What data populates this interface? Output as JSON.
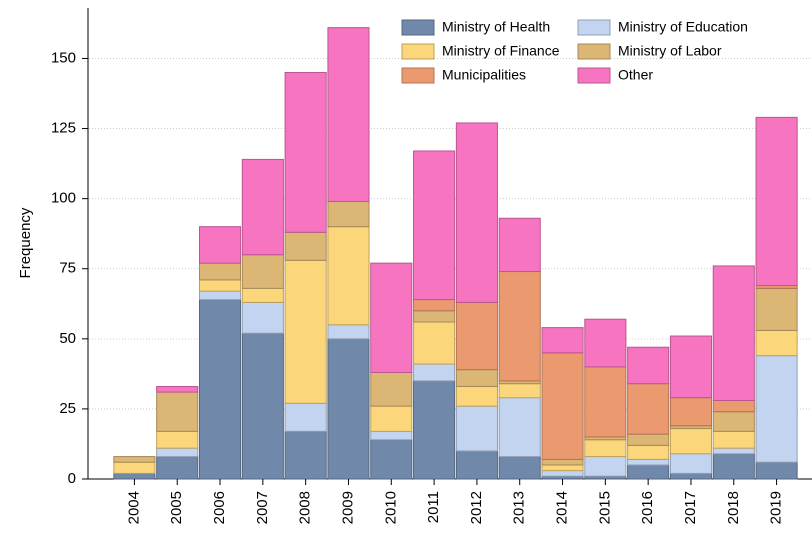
{
  "chart_data": {
    "type": "stacked_bar",
    "y_label": "Frequency",
    "categories": [
      "2004",
      "2005",
      "2006",
      "2007",
      "2008",
      "2009",
      "2010",
      "2011",
      "2012",
      "2013",
      "2014",
      "2015",
      "2016",
      "2017",
      "2018",
      "2019"
    ],
    "series": [
      {
        "name": "Ministry of Health",
        "color": "#7089ab",
        "values": [
          2,
          8,
          64,
          52,
          17,
          50,
          14,
          35,
          10,
          8,
          1,
          1,
          5,
          2,
          9,
          6
        ]
      },
      {
        "name": "Ministry of Education",
        "color": "#c3d4f0",
        "values": [
          0,
          3,
          3,
          11,
          10,
          5,
          3,
          6,
          16,
          21,
          2,
          7,
          2,
          7,
          2,
          38
        ]
      },
      {
        "name": "Ministry of Finance",
        "color": "#fcd67a",
        "values": [
          4,
          6,
          4,
          5,
          51,
          35,
          9,
          15,
          7,
          5,
          2,
          6,
          5,
          9,
          6,
          9
        ]
      },
      {
        "name": "Ministry of Labor",
        "color": "#dbb674",
        "values": [
          2,
          14,
          6,
          12,
          10,
          9,
          12,
          4,
          6,
          1,
          2,
          1,
          4,
          1,
          7,
          15
        ]
      },
      {
        "name": "Municipalities",
        "color": "#eb9a70",
        "values": [
          0,
          0,
          0,
          0,
          0,
          0,
          0,
          4,
          24,
          39,
          38,
          25,
          18,
          10,
          4,
          1
        ]
      },
      {
        "name": "Other",
        "color": "#f774c0",
        "values": [
          0,
          2,
          13,
          34,
          57,
          62,
          39,
          53,
          64,
          19,
          9,
          17,
          13,
          22,
          48,
          60
        ]
      }
    ],
    "ylim": [
      0,
      168
    ],
    "yticks": [
      0,
      25,
      50,
      75,
      100,
      125,
      150
    ],
    "grid": true
  }
}
